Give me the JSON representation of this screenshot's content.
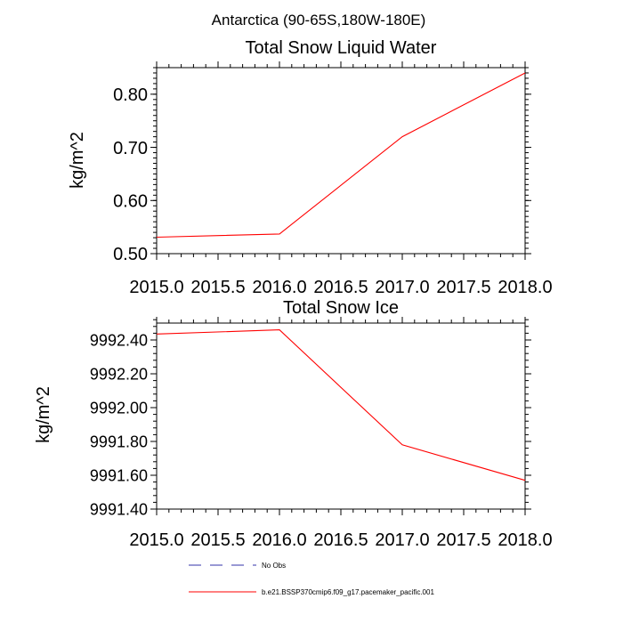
{
  "suptitle": "Antarctica (90-65S,180W-180E)",
  "chart_data": [
    {
      "type": "line",
      "title": "Total Snow Liquid Water",
      "xlabel": "",
      "ylabel": "kg/m^2",
      "xlim": [
        2015.0,
        2018.0
      ],
      "ylim": [
        0.5,
        0.85
      ],
      "xticks": [
        "2015.0",
        "2015.5",
        "2016.0",
        "2016.5",
        "2017.0",
        "2017.5",
        "2018.0"
      ],
      "yticks": [
        "0.50",
        "0.60",
        "0.70",
        "0.80"
      ],
      "grid": false,
      "series": [
        {
          "name": "b.e21.BSSP370cmip6.f09_g17.pacemaker_pacific.001",
          "color": "#ff0000",
          "x": [
            2015.0,
            2016.0,
            2017.0,
            2018.0
          ],
          "y": [
            0.531,
            0.537,
            0.72,
            0.84
          ]
        }
      ]
    },
    {
      "type": "line",
      "title": "Total Snow Ice",
      "xlabel": "",
      "ylabel": "kg/m^2",
      "xlim": [
        2015.0,
        2018.0
      ],
      "ylim": [
        9991.4,
        9992.5
      ],
      "xticks": [
        "2015.0",
        "2015.5",
        "2016.0",
        "2016.5",
        "2017.0",
        "2017.5",
        "2018.0"
      ],
      "yticks": [
        "9991.40",
        "9991.60",
        "9991.80",
        "9992.00",
        "9992.20",
        "9992.40"
      ],
      "grid": false,
      "series": [
        {
          "name": "b.e21.BSSP370cmip6.f09_g17.pacemaker_pacific.001",
          "color": "#ff0000",
          "x": [
            2015.0,
            2016.0,
            2017.0,
            2018.0
          ],
          "y": [
            9992.435,
            9992.46,
            9991.78,
            9991.57
          ]
        }
      ]
    }
  ],
  "legend": {
    "placement": "bottom",
    "entries": [
      {
        "label": "No Obs",
        "color": "#3333aa",
        "style": "dashed"
      },
      {
        "label": "b.e21.BSSP370cmip6.f09_g17.pacemaker_pacific.001",
        "color": "#ff0000",
        "style": "solid"
      }
    ]
  }
}
